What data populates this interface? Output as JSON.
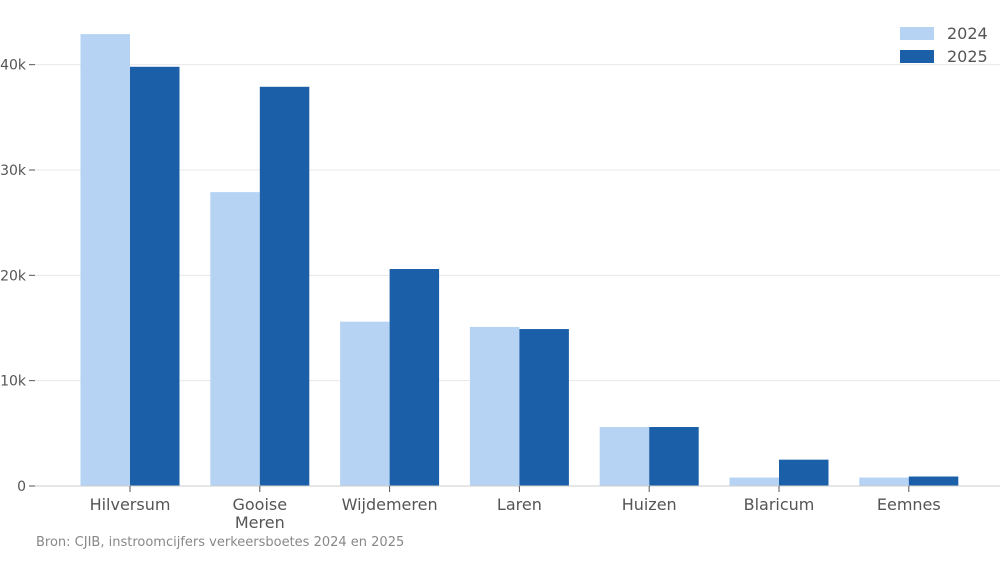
{
  "chart_data": {
    "type": "bar",
    "categories": [
      "Hilversum",
      "Gooise Meren",
      "Wijdemeren",
      "Laren",
      "Huizen",
      "Blaricum",
      "Eemnes"
    ],
    "category_lines": [
      [
        "Hilversum"
      ],
      [
        "Gooise",
        "Meren"
      ],
      [
        "Wijdemeren"
      ],
      [
        "Laren"
      ],
      [
        "Huizen"
      ],
      [
        "Blaricum"
      ],
      [
        "Eemnes"
      ]
    ],
    "series": [
      {
        "name": "2024",
        "color": "#b6d3f4",
        "values": [
          42900,
          27900,
          15600,
          15100,
          5600,
          800,
          800
        ]
      },
      {
        "name": "2025",
        "color": "#1a5fa8",
        "values": [
          39800,
          37900,
          20600,
          14900,
          5600,
          2500,
          900
        ]
      }
    ],
    "ylim": [
      0,
      45000
    ],
    "yticks": [
      0,
      10000,
      20000,
      30000,
      40000
    ],
    "ytick_labels": [
      "0",
      "10k",
      "20k",
      "30k",
      "40k"
    ],
    "grid": true,
    "legend_position": "top-right"
  },
  "source": "Bron: CJIB, instroomcijfers verkeersboetes 2024 en 2025"
}
